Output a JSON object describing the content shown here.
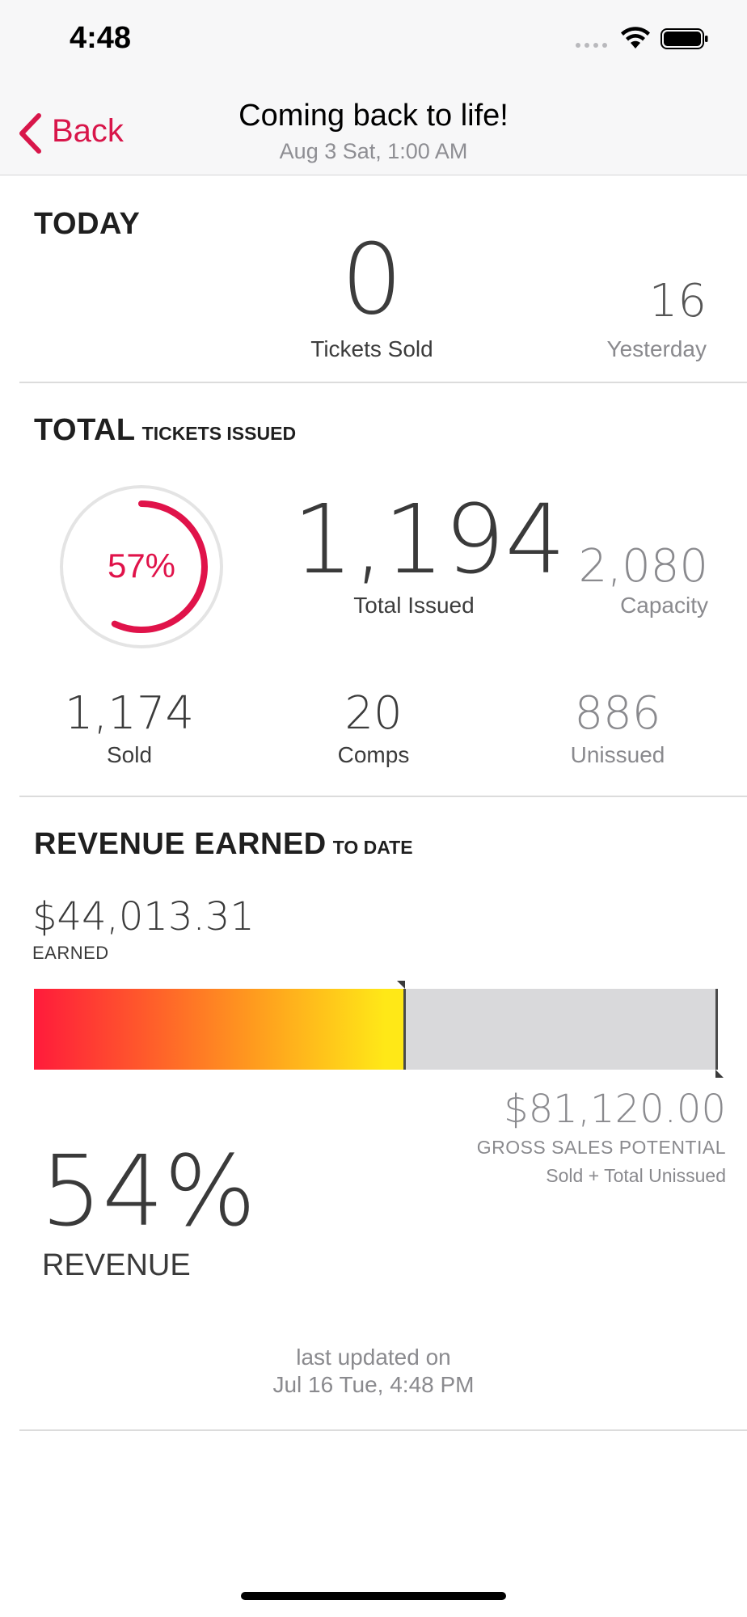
{
  "status_bar": {
    "time": "4:48"
  },
  "nav": {
    "back_label": "Back",
    "title": "Coming back to life!",
    "subtitle": "Aug 3 Sat, 1:00 AM",
    "accent_color": "#d8164a"
  },
  "today": {
    "title": "TODAY",
    "tickets_sold_value": "0",
    "tickets_sold_label": "Tickets Sold",
    "yesterday_value": "16",
    "yesterday_label": "Yesterday"
  },
  "total": {
    "title": "TOTAL",
    "subtitle": "TICKETS ISSUED",
    "percent_label": "57%",
    "percent_value": 0.57,
    "total_issued_value": "1,194",
    "total_issued_label": "Total Issued",
    "capacity_value": "2,080",
    "capacity_label": "Capacity",
    "sold_value": "1,174",
    "sold_label": "Sold",
    "comps_value": "20",
    "comps_label": "Comps",
    "unissued_value": "886",
    "unissued_label": "Unissued"
  },
  "revenue": {
    "title": "REVENUE EARNED",
    "subtitle": "TO DATE",
    "earned_value": "$44,013.31",
    "earned_label": "EARNED",
    "bar_fill_fraction": 0.54,
    "gross_value": "$81,120.00",
    "gross_label": "GROSS SALES POTENTIAL",
    "gross_note": "Sold + Total Unissued",
    "percent_value": "54%",
    "percent_label": "REVENUE"
  },
  "footer": {
    "line1": "last updated on",
    "line2": "Jul 16 Tue, 4:48 PM"
  }
}
